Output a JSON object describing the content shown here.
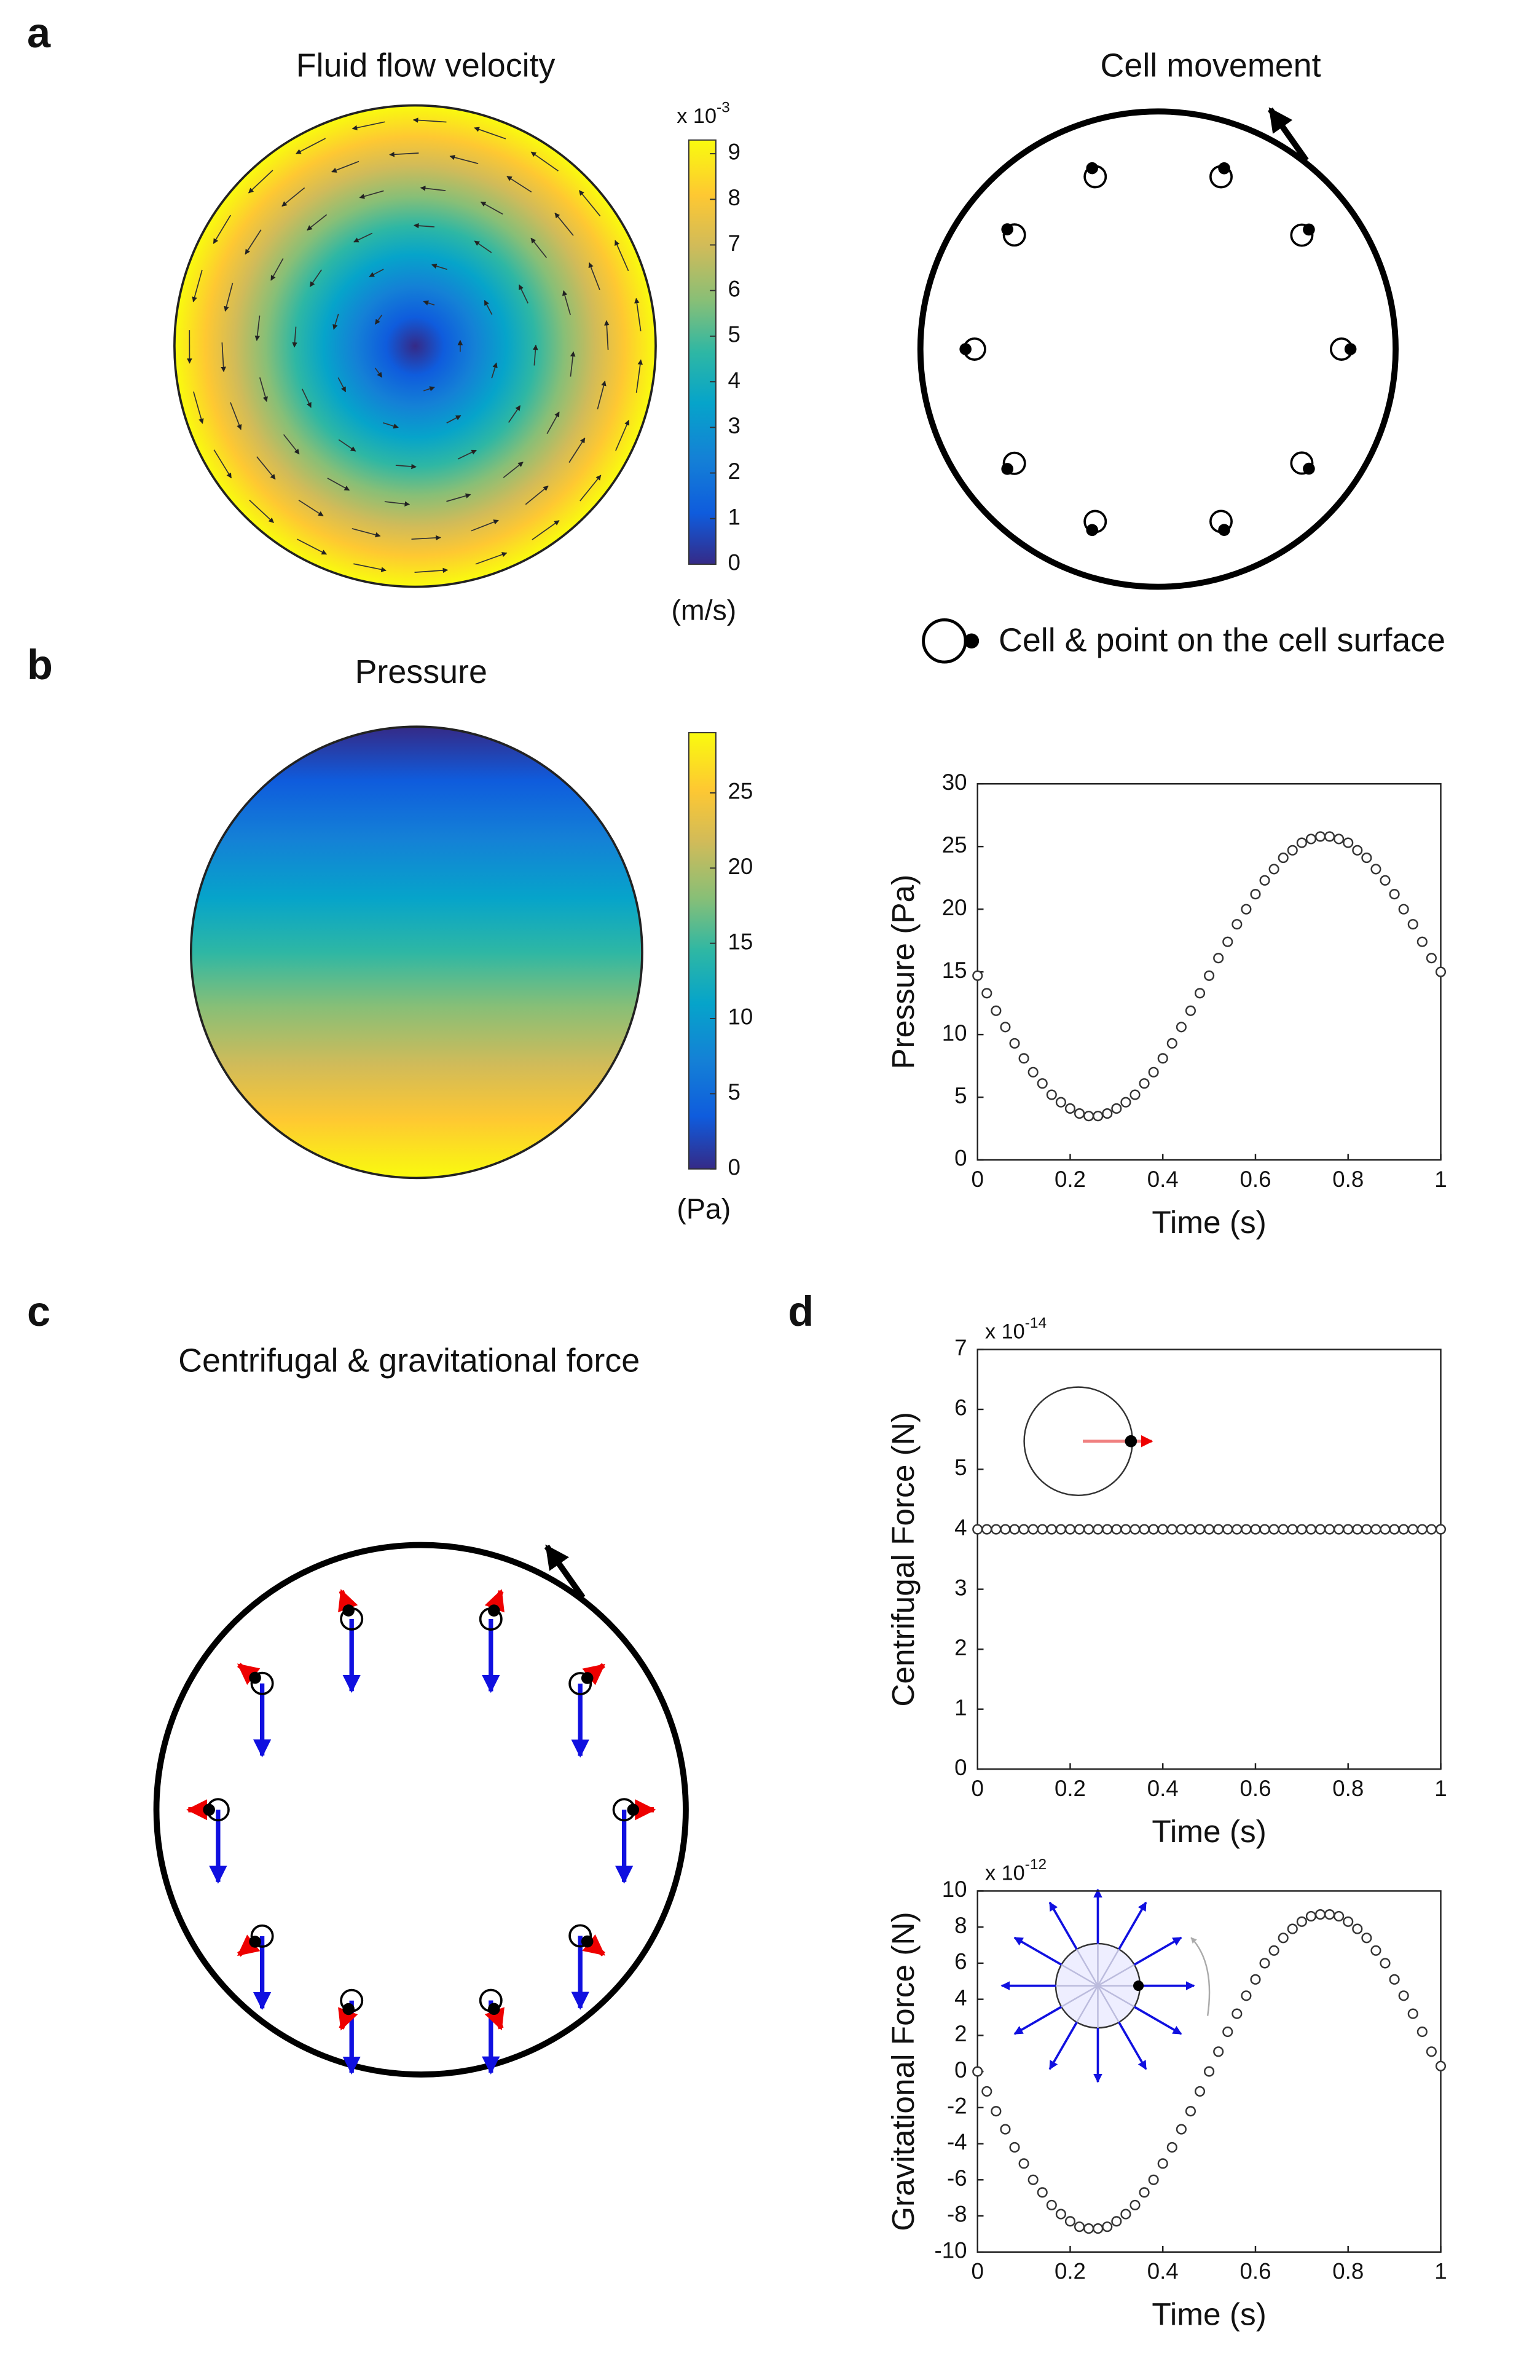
{
  "panels": [
    "a",
    "b",
    "c",
    "d"
  ],
  "flow": {
    "title": "Fluid flow velocity",
    "colorbar": {
      "lim": [
        0,
        9.3
      ],
      "ticks": [
        0,
        1,
        2,
        3,
        4,
        5,
        6,
        7,
        8,
        9
      ],
      "multiplier": "x 10",
      "exponent": "-3",
      "unit": "(m/s)"
    }
  },
  "cell_movement": {
    "title": "Cell movement",
    "legend": "Cell & point on the cell surface"
  },
  "pressure_map": {
    "title": "Pressure",
    "colorbar": {
      "lim": [
        0,
        29
      ],
      "ticks": [
        0,
        5,
        10,
        15,
        20,
        25
      ],
      "unit": "(Pa)"
    }
  },
  "forces": {
    "title": "Centrifugal & gravitational force"
  },
  "chart_data": [
    {
      "type": "line",
      "xlabel": "Time (s)",
      "ylabel": "Pressure (Pa)",
      "xlim": [
        0,
        1
      ],
      "ylim": [
        0,
        30
      ],
      "xticks": [
        0,
        0.2,
        0.4,
        0.6,
        0.8,
        1
      ],
      "yticks": [
        0,
        5,
        10,
        15,
        20,
        25,
        30
      ],
      "marker": "open-circle",
      "x": [
        0,
        0.02,
        0.04,
        0.06,
        0.08,
        0.1,
        0.12,
        0.14,
        0.16,
        0.18,
        0.2,
        0.22,
        0.24,
        0.26,
        0.28,
        0.3,
        0.32,
        0.34,
        0.36,
        0.38,
        0.4,
        0.42,
        0.44,
        0.46,
        0.48,
        0.5,
        0.52,
        0.54,
        0.56,
        0.58,
        0.6,
        0.62,
        0.64,
        0.66,
        0.68,
        0.7,
        0.72,
        0.74,
        0.76,
        0.78,
        0.8,
        0.82,
        0.84,
        0.86,
        0.88,
        0.9,
        0.92,
        0.94,
        0.96,
        0.98,
        1
      ],
      "series": [
        {
          "color": "#333333",
          "values": [
            14.7,
            13.3,
            11.9,
            10.6,
            9.3,
            8.1,
            7.0,
            6.1,
            5.2,
            4.6,
            4.1,
            3.7,
            3.5,
            3.5,
            3.7,
            4.1,
            4.6,
            5.2,
            6.1,
            7.0,
            8.1,
            9.3,
            10.6,
            11.9,
            13.3,
            14.7,
            16.1,
            17.4,
            18.8,
            20.0,
            21.2,
            22.3,
            23.2,
            24.1,
            24.7,
            25.3,
            25.6,
            25.8,
            25.8,
            25.6,
            25.3,
            24.7,
            24.1,
            23.2,
            22.3,
            21.2,
            20.0,
            18.8,
            17.4,
            16.1,
            15.0
          ]
        }
      ]
    },
    {
      "type": "line",
      "xlabel": "Time (s)",
      "ylabel": "Centrifugal Force (N)",
      "y_multiplier": "x 10",
      "y_exponent": "-14",
      "xlim": [
        0,
        1
      ],
      "ylim": [
        0,
        7
      ],
      "xticks": [
        0,
        0.2,
        0.4,
        0.6,
        0.8,
        1
      ],
      "yticks": [
        0,
        1,
        2,
        3,
        4,
        5,
        6,
        7
      ],
      "marker": "open-circle",
      "x": [
        0,
        0.02,
        0.04,
        0.06,
        0.08,
        0.1,
        0.12,
        0.14,
        0.16,
        0.18,
        0.2,
        0.22,
        0.24,
        0.26,
        0.28,
        0.3,
        0.32,
        0.34,
        0.36,
        0.38,
        0.4,
        0.42,
        0.44,
        0.46,
        0.48,
        0.5,
        0.52,
        0.54,
        0.56,
        0.58,
        0.6,
        0.62,
        0.64,
        0.66,
        0.68,
        0.7,
        0.72,
        0.74,
        0.76,
        0.78,
        0.8,
        0.82,
        0.84,
        0.86,
        0.88,
        0.9,
        0.92,
        0.94,
        0.96,
        0.98,
        1
      ],
      "series": [
        {
          "color": "#333333",
          "values": [
            4,
            4,
            4,
            4,
            4,
            4,
            4,
            4,
            4,
            4,
            4,
            4,
            4,
            4,
            4,
            4,
            4,
            4,
            4,
            4,
            4,
            4,
            4,
            4,
            4,
            4,
            4,
            4,
            4,
            4,
            4,
            4,
            4,
            4,
            4,
            4,
            4,
            4,
            4,
            4,
            4,
            4,
            4,
            4,
            4,
            4,
            4,
            4,
            4,
            4,
            4
          ]
        }
      ]
    },
    {
      "type": "line",
      "xlabel": "Time (s)",
      "ylabel": "Gravitational Force (N)",
      "y_multiplier": "x 10",
      "y_exponent": "-12",
      "xlim": [
        0,
        1
      ],
      "ylim": [
        -10,
        10
      ],
      "xticks": [
        0,
        0.2,
        0.4,
        0.6,
        0.8,
        1
      ],
      "yticks": [
        -10,
        -8,
        -6,
        -4,
        -2,
        0,
        2,
        4,
        6,
        8,
        10
      ],
      "marker": "open-circle",
      "x": [
        0,
        0.02,
        0.04,
        0.06,
        0.08,
        0.1,
        0.12,
        0.14,
        0.16,
        0.18,
        0.2,
        0.22,
        0.24,
        0.26,
        0.28,
        0.3,
        0.32,
        0.34,
        0.36,
        0.38,
        0.4,
        0.42,
        0.44,
        0.46,
        0.48,
        0.5,
        0.52,
        0.54,
        0.56,
        0.58,
        0.6,
        0.62,
        0.64,
        0.66,
        0.68,
        0.7,
        0.72,
        0.74,
        0.76,
        0.78,
        0.8,
        0.82,
        0.84,
        0.86,
        0.88,
        0.9,
        0.92,
        0.94,
        0.96,
        0.98,
        1
      ],
      "series": [
        {
          "color": "#333333",
          "values": [
            0,
            -1.1,
            -2.2,
            -3.2,
            -4.2,
            -5.1,
            -6.0,
            -6.7,
            -7.4,
            -7.9,
            -8.3,
            -8.6,
            -8.7,
            -8.7,
            -8.6,
            -8.3,
            -7.9,
            -7.4,
            -6.7,
            -6.0,
            -5.1,
            -4.2,
            -3.2,
            -2.2,
            -1.1,
            0,
            1.1,
            2.2,
            3.2,
            4.2,
            5.1,
            6.0,
            6.7,
            7.4,
            7.9,
            8.3,
            8.6,
            8.7,
            8.7,
            8.6,
            8.3,
            7.9,
            7.4,
            6.7,
            6.0,
            5.1,
            4.2,
            3.2,
            2.2,
            1.1,
            0.3
          ]
        }
      ]
    }
  ]
}
